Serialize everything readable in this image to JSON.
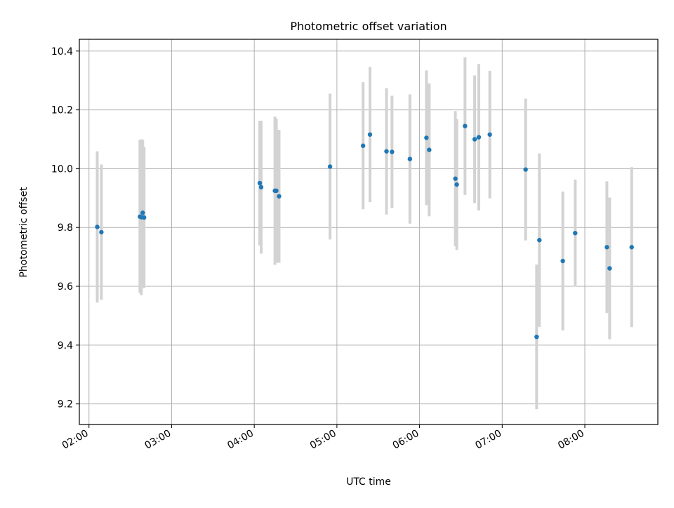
{
  "chart_data": {
    "type": "scatter",
    "title": "Photometric offset variation",
    "xlabel": "UTC time",
    "ylabel": "Photometric offset",
    "x_tick_labels": [
      "02:00",
      "03:00",
      "04:00",
      "05:00",
      "06:00",
      "07:00",
      "08:00"
    ],
    "y_ticks": [
      9.2,
      9.4,
      9.6,
      9.8,
      10.0,
      10.2,
      10.4
    ],
    "y_tick_labels": [
      "9.2",
      "9.4",
      "9.6",
      "9.8",
      "10.0",
      "10.2",
      "10.4"
    ],
    "xlim": [
      "01:53",
      "08:53"
    ],
    "ylim": [
      9.13,
      10.44
    ],
    "grid": true,
    "colors": {
      "point": "#1f77b4",
      "error_bar": "#d3d3d3",
      "grid": "#b0b0b0"
    },
    "points": [
      {
        "t": "02:06",
        "y": 9.802,
        "err": 0.257
      },
      {
        "t": "02:09",
        "y": 9.784,
        "err": 0.23
      },
      {
        "t": "02:37",
        "y": 9.837,
        "err": 0.26
      },
      {
        "t": "02:38",
        "y": 9.835,
        "err": 0.265
      },
      {
        "t": "02:39",
        "y": 9.85,
        "err": 0.248
      },
      {
        "t": "02:40",
        "y": 9.834,
        "err": 0.24
      },
      {
        "t": "04:04",
        "y": 9.951,
        "err": 0.212
      },
      {
        "t": "04:05",
        "y": 9.937,
        "err": 0.226
      },
      {
        "t": "04:15",
        "y": 9.925,
        "err": 0.252
      },
      {
        "t": "04:16",
        "y": 9.925,
        "err": 0.245
      },
      {
        "t": "04:18",
        "y": 9.906,
        "err": 0.226
      },
      {
        "t": "04:55",
        "y": 10.007,
        "err": 0.248
      },
      {
        "t": "05:19",
        "y": 10.078,
        "err": 0.216
      },
      {
        "t": "05:24",
        "y": 10.116,
        "err": 0.23
      },
      {
        "t": "05:36",
        "y": 10.059,
        "err": 0.215
      },
      {
        "t": "05:40",
        "y": 10.057,
        "err": 0.191
      },
      {
        "t": "05:53",
        "y": 10.033,
        "err": 0.22
      },
      {
        "t": "06:05",
        "y": 10.105,
        "err": 0.229
      },
      {
        "t": "06:07",
        "y": 10.064,
        "err": 0.226
      },
      {
        "t": "06:26",
        "y": 9.966,
        "err": 0.23
      },
      {
        "t": "06:27",
        "y": 9.946,
        "err": 0.222
      },
      {
        "t": "06:33",
        "y": 10.145,
        "err": 0.234
      },
      {
        "t": "06:40",
        "y": 10.1,
        "err": 0.217
      },
      {
        "t": "06:43",
        "y": 10.107,
        "err": 0.249
      },
      {
        "t": "06:51",
        "y": 10.116,
        "err": 0.217
      },
      {
        "t": "07:17",
        "y": 9.997,
        "err": 0.241
      },
      {
        "t": "07:25",
        "y": 9.428,
        "err": 0.246
      },
      {
        "t": "07:27",
        "y": 9.757,
        "err": 0.295
      },
      {
        "t": "07:44",
        "y": 9.686,
        "err": 0.236
      },
      {
        "t": "07:53",
        "y": 9.781,
        "err": 0.182
      },
      {
        "t": "08:16",
        "y": 9.733,
        "err": 0.224
      },
      {
        "t": "08:18",
        "y": 9.661,
        "err": 0.241
      },
      {
        "t": "08:34",
        "y": 9.733,
        "err": 0.272
      }
    ]
  }
}
